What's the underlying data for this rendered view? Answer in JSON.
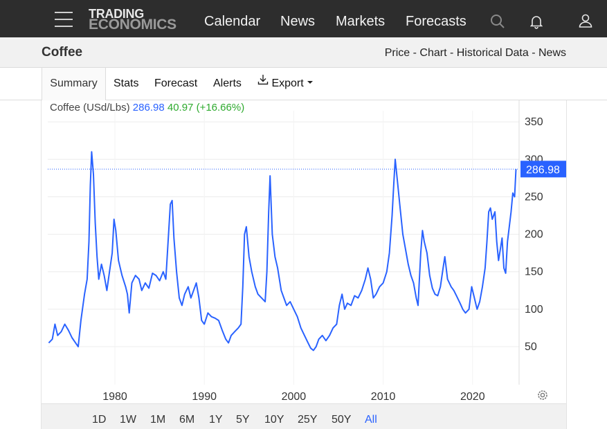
{
  "nav": {
    "logo_top": "TRADING",
    "logo_bottom": "ECONOMICS",
    "links": [
      "Calendar",
      "News",
      "Markets",
      "Forecasts"
    ],
    "icons": [
      "menu-icon",
      "search-icon",
      "bell-icon",
      "user-icon"
    ]
  },
  "header": {
    "title": "Coffee",
    "crumbs": "Price - Chart - Historical Data - News"
  },
  "tabs": [
    "Summary",
    "Stats",
    "Forecast",
    "Alerts",
    "Export"
  ],
  "legend": {
    "name": "Coffee (USd/Lbs)",
    "value": "286.98",
    "change": "40.97 (+16.66%)"
  },
  "ranges": [
    "1D",
    "1W",
    "1M",
    "6M",
    "1Y",
    "5Y",
    "10Y",
    "25Y",
    "50Y",
    "All"
  ],
  "selected_range": "All",
  "colors": {
    "line": "#2962ff",
    "change_positive": "#2eaa2e",
    "topbar": "#2d2d2d",
    "last_price_tag": "#2962ff"
  },
  "chart_data": {
    "type": "line",
    "title": "",
    "xlabel": "",
    "ylabel": "",
    "xlim": [
      1972.5,
      2025.0
    ],
    "ylim": [
      0,
      370
    ],
    "yticks": [
      50,
      100,
      150,
      200,
      250,
      300,
      350
    ],
    "xticks": [
      1980,
      1990,
      2000,
      2010,
      2020
    ],
    "grid": true,
    "last_value_label": "286.98",
    "last_value": 286.98,
    "series": [
      {
        "name": "Coffee (USd/Lbs)",
        "points": [
          [
            1972.6,
            55
          ],
          [
            1973.0,
            60
          ],
          [
            1973.3,
            80
          ],
          [
            1973.6,
            65
          ],
          [
            1974.0,
            70
          ],
          [
            1974.4,
            80
          ],
          [
            1974.8,
            72
          ],
          [
            1975.2,
            62
          ],
          [
            1975.6,
            55
          ],
          [
            1975.9,
            50
          ],
          [
            1976.2,
            85
          ],
          [
            1976.6,
            120
          ],
          [
            1976.9,
            140
          ],
          [
            1977.1,
            190
          ],
          [
            1977.25,
            265
          ],
          [
            1977.4,
            310
          ],
          [
            1977.6,
            280
          ],
          [
            1977.8,
            215
          ],
          [
            1978.0,
            170
          ],
          [
            1978.2,
            140
          ],
          [
            1978.5,
            160
          ],
          [
            1978.8,
            145
          ],
          [
            1979.1,
            125
          ],
          [
            1979.4,
            150
          ],
          [
            1979.7,
            175
          ],
          [
            1979.9,
            220
          ],
          [
            1980.1,
            205
          ],
          [
            1980.4,
            165
          ],
          [
            1980.8,
            145
          ],
          [
            1981.2,
            130
          ],
          [
            1981.4,
            120
          ],
          [
            1981.6,
            95
          ],
          [
            1981.9,
            135
          ],
          [
            1982.3,
            145
          ],
          [
            1982.7,
            140
          ],
          [
            1983.0,
            125
          ],
          [
            1983.4,
            135
          ],
          [
            1983.8,
            128
          ],
          [
            1984.2,
            148
          ],
          [
            1984.6,
            145
          ],
          [
            1985.0,
            138
          ],
          [
            1985.4,
            150
          ],
          [
            1985.7,
            140
          ],
          [
            1986.0,
            200
          ],
          [
            1986.2,
            240
          ],
          [
            1986.4,
            245
          ],
          [
            1986.6,
            195
          ],
          [
            1986.9,
            150
          ],
          [
            1987.2,
            115
          ],
          [
            1987.5,
            105
          ],
          [
            1987.8,
            120
          ],
          [
            1988.2,
            130
          ],
          [
            1988.5,
            115
          ],
          [
            1988.8,
            125
          ],
          [
            1989.1,
            135
          ],
          [
            1989.4,
            115
          ],
          [
            1989.7,
            85
          ],
          [
            1990.0,
            80
          ],
          [
            1990.4,
            95
          ],
          [
            1990.8,
            90
          ],
          [
            1991.2,
            88
          ],
          [
            1991.6,
            85
          ],
          [
            1992.0,
            72
          ],
          [
            1992.4,
            60
          ],
          [
            1992.7,
            55
          ],
          [
            1993.0,
            65
          ],
          [
            1993.4,
            70
          ],
          [
            1993.8,
            75
          ],
          [
            1994.1,
            80
          ],
          [
            1994.3,
            130
          ],
          [
            1994.5,
            200
          ],
          [
            1994.7,
            210
          ],
          [
            1995.0,
            170
          ],
          [
            1995.3,
            150
          ],
          [
            1995.7,
            130
          ],
          [
            1996.0,
            120
          ],
          [
            1996.4,
            115
          ],
          [
            1996.8,
            110
          ],
          [
            1997.0,
            150
          ],
          [
            1997.2,
            230
          ],
          [
            1997.35,
            278
          ],
          [
            1997.6,
            200
          ],
          [
            1997.9,
            170
          ],
          [
            1998.2,
            155
          ],
          [
            1998.6,
            125
          ],
          [
            1998.9,
            115
          ],
          [
            1999.2,
            105
          ],
          [
            1999.6,
            110
          ],
          [
            2000.0,
            100
          ],
          [
            2000.4,
            90
          ],
          [
            2000.8,
            75
          ],
          [
            2001.2,
            65
          ],
          [
            2001.6,
            55
          ],
          [
            2001.9,
            48
          ],
          [
            2002.2,
            45
          ],
          [
            2002.5,
            50
          ],
          [
            2002.8,
            60
          ],
          [
            2003.2,
            65
          ],
          [
            2003.6,
            58
          ],
          [
            2004.0,
            65
          ],
          [
            2004.4,
            75
          ],
          [
            2004.8,
            80
          ],
          [
            2005.1,
            105
          ],
          [
            2005.4,
            120
          ],
          [
            2005.7,
            100
          ],
          [
            2006.0,
            108
          ],
          [
            2006.4,
            105
          ],
          [
            2006.8,
            118
          ],
          [
            2007.2,
            115
          ],
          [
            2007.6,
            125
          ],
          [
            2008.0,
            140
          ],
          [
            2008.3,
            155
          ],
          [
            2008.6,
            140
          ],
          [
            2008.9,
            115
          ],
          [
            2009.2,
            120
          ],
          [
            2009.6,
            130
          ],
          [
            2010.0,
            135
          ],
          [
            2010.4,
            150
          ],
          [
            2010.7,
            175
          ],
          [
            2011.0,
            225
          ],
          [
            2011.2,
            270
          ],
          [
            2011.35,
            300
          ],
          [
            2011.6,
            270
          ],
          [
            2011.9,
            235
          ],
          [
            2012.2,
            200
          ],
          [
            2012.5,
            180
          ],
          [
            2012.8,
            160
          ],
          [
            2013.1,
            145
          ],
          [
            2013.4,
            135
          ],
          [
            2013.7,
            115
          ],
          [
            2013.9,
            105
          ],
          [
            2014.2,
            175
          ],
          [
            2014.4,
            205
          ],
          [
            2014.6,
            190
          ],
          [
            2014.9,
            175
          ],
          [
            2015.2,
            145
          ],
          [
            2015.5,
            128
          ],
          [
            2015.8,
            120
          ],
          [
            2016.1,
            118
          ],
          [
            2016.4,
            130
          ],
          [
            2016.7,
            155
          ],
          [
            2016.9,
            170
          ],
          [
            2017.2,
            140
          ],
          [
            2017.6,
            130
          ],
          [
            2017.9,
            125
          ],
          [
            2018.2,
            118
          ],
          [
            2018.6,
            108
          ],
          [
            2018.9,
            100
          ],
          [
            2019.2,
            95
          ],
          [
            2019.6,
            100
          ],
          [
            2019.9,
            130
          ],
          [
            2020.2,
            115
          ],
          [
            2020.5,
            100
          ],
          [
            2020.8,
            110
          ],
          [
            2021.1,
            130
          ],
          [
            2021.4,
            155
          ],
          [
            2021.6,
            190
          ],
          [
            2021.8,
            230
          ],
          [
            2022.0,
            235
          ],
          [
            2022.2,
            220
          ],
          [
            2022.5,
            230
          ],
          [
            2022.7,
            190
          ],
          [
            2022.9,
            165
          ],
          [
            2023.1,
            180
          ],
          [
            2023.3,
            195
          ],
          [
            2023.5,
            155
          ],
          [
            2023.7,
            148
          ],
          [
            2023.9,
            190
          ],
          [
            2024.1,
            210
          ],
          [
            2024.3,
            230
          ],
          [
            2024.5,
            255
          ],
          [
            2024.7,
            250
          ],
          [
            2024.85,
            286.98
          ]
        ]
      }
    ]
  }
}
